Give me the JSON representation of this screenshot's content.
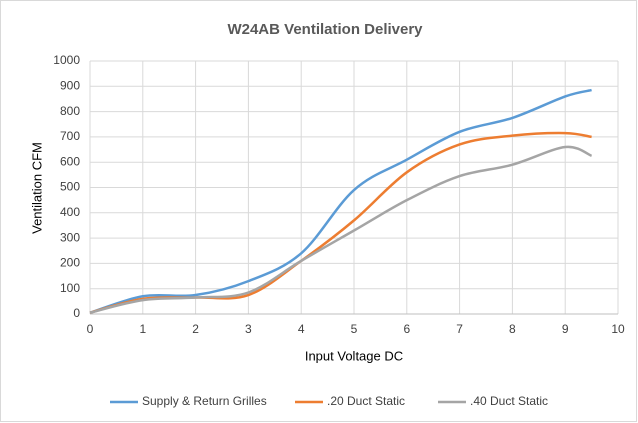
{
  "chart_data": {
    "type": "line",
    "title": "W24AB Ventilation Delivery",
    "x_label": "Input Voltage DC",
    "y_label": "Ventilation CFM",
    "x": [
      0,
      1,
      2,
      3,
      4,
      5,
      6,
      7,
      8,
      9,
      9.5
    ],
    "series": [
      {
        "name": "Supply & Return Grilles",
        "color": "#5b9bd5",
        "values": [
          5,
          70,
          75,
          130,
          240,
          490,
          610,
          720,
          775,
          860,
          885
        ]
      },
      {
        "name": ".20 Duct Static",
        "color": "#ed7d31",
        "values": [
          5,
          60,
          65,
          75,
          210,
          370,
          560,
          670,
          705,
          715,
          700
        ]
      },
      {
        "name": ".40 Duct Static",
        "color": "#a5a5a5",
        "values": [
          5,
          55,
          65,
          85,
          210,
          330,
          450,
          545,
          590,
          660,
          625
        ]
      }
    ],
    "xlim": [
      0,
      10
    ],
    "xticks": [
      0,
      1,
      2,
      3,
      4,
      5,
      6,
      7,
      8,
      9,
      10
    ],
    "ylim": [
      0,
      1000
    ],
    "yticks": [
      0,
      100,
      200,
      300,
      400,
      500,
      600,
      700,
      800,
      900,
      1000
    ],
    "grid": true,
    "legend": "bottom"
  }
}
